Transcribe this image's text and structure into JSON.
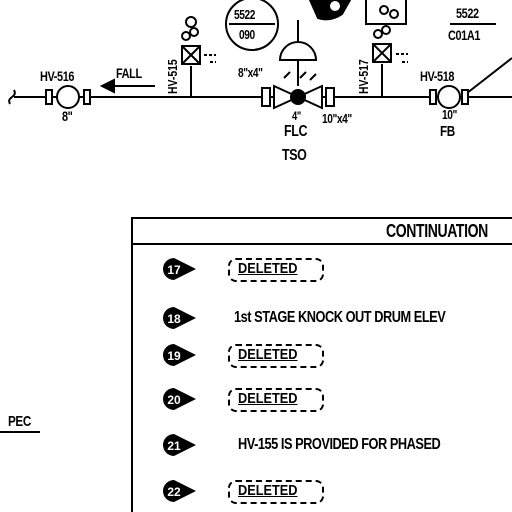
{
  "diagram": {
    "tags": {
      "hv516": "HV-516",
      "hv515": "HV-515",
      "hv517": "HV-517",
      "hv518": "HV-518",
      "instr_num": "5522",
      "instr_sub": "090",
      "ref_num": "5522",
      "ref_sub": "C01A1"
    },
    "labels": {
      "fall": "FALL",
      "size_8": "8\"",
      "size_10": "10\"",
      "reducer_left": "8\"x4\"",
      "reducer_right": "10\"x4\"",
      "control_size": "4\"",
      "flc": "FLC",
      "tso": "TSO",
      "fb": "FB",
      "pec": "PEC"
    },
    "notes_table": {
      "header": "CONTINUATION",
      "notes": [
        {
          "num": "17",
          "text": "DELETED",
          "deleted": true
        },
        {
          "num": "18",
          "text": "1st STAGE KNOCK OUT DRUM ELEV",
          "deleted": false
        },
        {
          "num": "19",
          "text": "DELETED",
          "deleted": true
        },
        {
          "num": "20",
          "text": "DELETED",
          "deleted": true
        },
        {
          "num": "21",
          "text": "HV-155 IS PROVIDED FOR PHASED",
          "deleted": false
        },
        {
          "num": "22",
          "text": "DELETED",
          "deleted": true
        }
      ]
    }
  }
}
